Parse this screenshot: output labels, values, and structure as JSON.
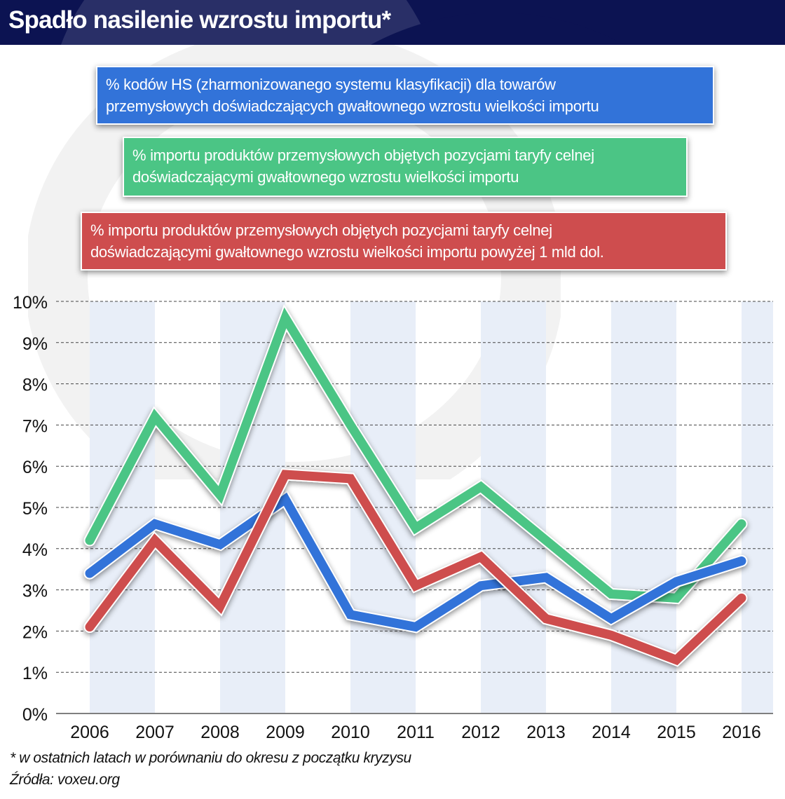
{
  "header": {
    "title": "Spadło nasilenie wzrostu importu*"
  },
  "legend": [
    {
      "series": "hs_codes",
      "color": "#3273d9",
      "lines": [
        "% kodów HS (zharmonizowanego systemu klasyfikacji) dla towarów",
        "przemysłowych doświadczających gwałtownego wzrostu wielkości importu"
      ]
    },
    {
      "series": "import_share",
      "color": "#4bc585",
      "lines": [
        "% importu produktów przemysłowych objętych pozycjami taryfy celnej",
        "doświadczającymi gwałtownego wzrostu wielkości importu"
      ]
    },
    {
      "series": "import_share_over_1bn",
      "color": "#ce4d4e",
      "lines": [
        "% importu produktów przemysłowych objętych pozycjami taryfy celnej",
        "doświadczającymi gwałtownego wzrostu wielkości importu powyżej 1 mld dol."
      ]
    }
  ],
  "chart_data": {
    "type": "line",
    "title": "Spadło nasilenie wzrostu importu*",
    "xlabel": "",
    "ylabel": "",
    "x": [
      "2006",
      "2007",
      "2008",
      "2009",
      "2010",
      "2011",
      "2012",
      "2013",
      "2014",
      "2015",
      "2016"
    ],
    "ylim": [
      0,
      10
    ],
    "yticks": [
      "0%",
      "1%",
      "2%",
      "3%",
      "4%",
      "5%",
      "6%",
      "7%",
      "8%",
      "9%",
      "10%"
    ],
    "grid": "horizontal dashed",
    "legend_position": "top",
    "series": [
      {
        "name": "% importu produktów przemysłowych objętych pozycjami taryfy celnej doświadczającymi gwałtownego wzrostu wielkości importu",
        "color": "#4bc585",
        "values": [
          4.2,
          7.2,
          5.3,
          9.6,
          7.0,
          4.5,
          5.5,
          4.2,
          2.9,
          2.8,
          4.6
        ]
      },
      {
        "name": "% kodów HS (zharmonizowanego systemu klasyfikacji) dla towarów przemysłowych doświadczających gwałtownego wzrostu wielkości importu",
        "color": "#3273d9",
        "values": [
          3.4,
          4.6,
          4.1,
          5.2,
          2.4,
          2.1,
          3.1,
          3.3,
          2.3,
          3.2,
          3.7
        ]
      },
      {
        "name": "% importu produktów przemysłowych objętych pozycjami taryfy celnej doświadczającymi gwałtownego wzrostu wielkości importu powyżej 1 mld dol.",
        "color": "#ce4d4e",
        "values": [
          2.1,
          4.2,
          2.6,
          5.8,
          5.7,
          3.1,
          3.8,
          2.3,
          1.9,
          1.3,
          2.8
        ]
      }
    ]
  },
  "footer": {
    "note": "* w ostatnich latach w porównaniu do okresu z początku kryzysu",
    "source": "Źródła: voxeu.org"
  }
}
